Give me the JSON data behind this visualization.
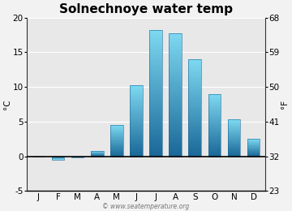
{
  "title": "Solnechnoye water temp",
  "months": [
    "J",
    "F",
    "M",
    "A",
    "M",
    "J",
    "J",
    "A",
    "S",
    "O",
    "N",
    "D"
  ],
  "values_c": [
    -0.1,
    -0.5,
    -0.2,
    0.8,
    4.5,
    10.2,
    18.2,
    17.8,
    14.0,
    9.0,
    5.3,
    2.5
  ],
  "ylim_c": [
    -5,
    20
  ],
  "ylim_f": [
    23,
    68
  ],
  "yticks_c": [
    -5,
    0,
    5,
    10,
    15,
    20
  ],
  "yticks_f": [
    23,
    32,
    41,
    50,
    59,
    68
  ],
  "bar_color_top": "#7dd8f0",
  "bar_color_bottom": "#1a6898",
  "bg_color": "#f2f2f2",
  "plot_bg_color": "#e8e8e8",
  "zero_line_color": "#000000",
  "grid_color": "#ffffff",
  "watermark": "© www.seatemperature.org",
  "title_fontsize": 11,
  "label_fontsize": 7.5,
  "tick_fontsize": 7.5
}
